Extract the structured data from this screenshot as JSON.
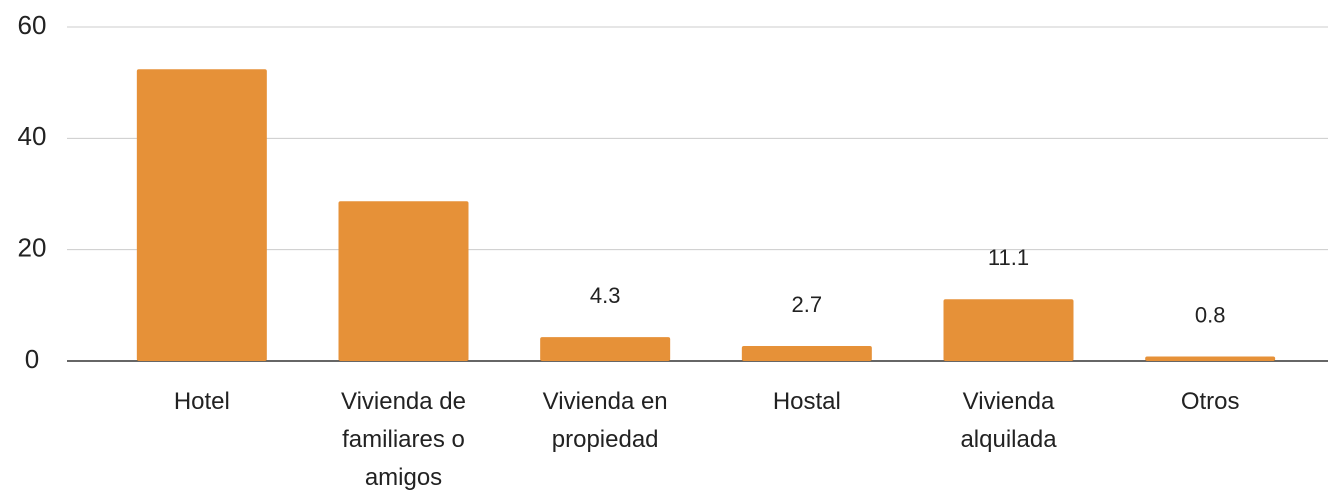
{
  "chart_data": {
    "type": "bar",
    "categories": [
      "Hotel",
      "Vivienda de familiares o amigos",
      "Vivienda en propiedad",
      "Hostal",
      "Vivienda alquilada",
      "Otros"
    ],
    "values": [
      52.4,
      28.7,
      4.3,
      2.7,
      11.1,
      0.8
    ],
    "value_labels": [
      null,
      null,
      "4.3",
      "2.7",
      "11.1",
      "0.8"
    ],
    "color": "#e69138",
    "ylim": [
      0,
      60
    ],
    "yticks": [
      0,
      20,
      40,
      60
    ],
    "grid": true
  }
}
